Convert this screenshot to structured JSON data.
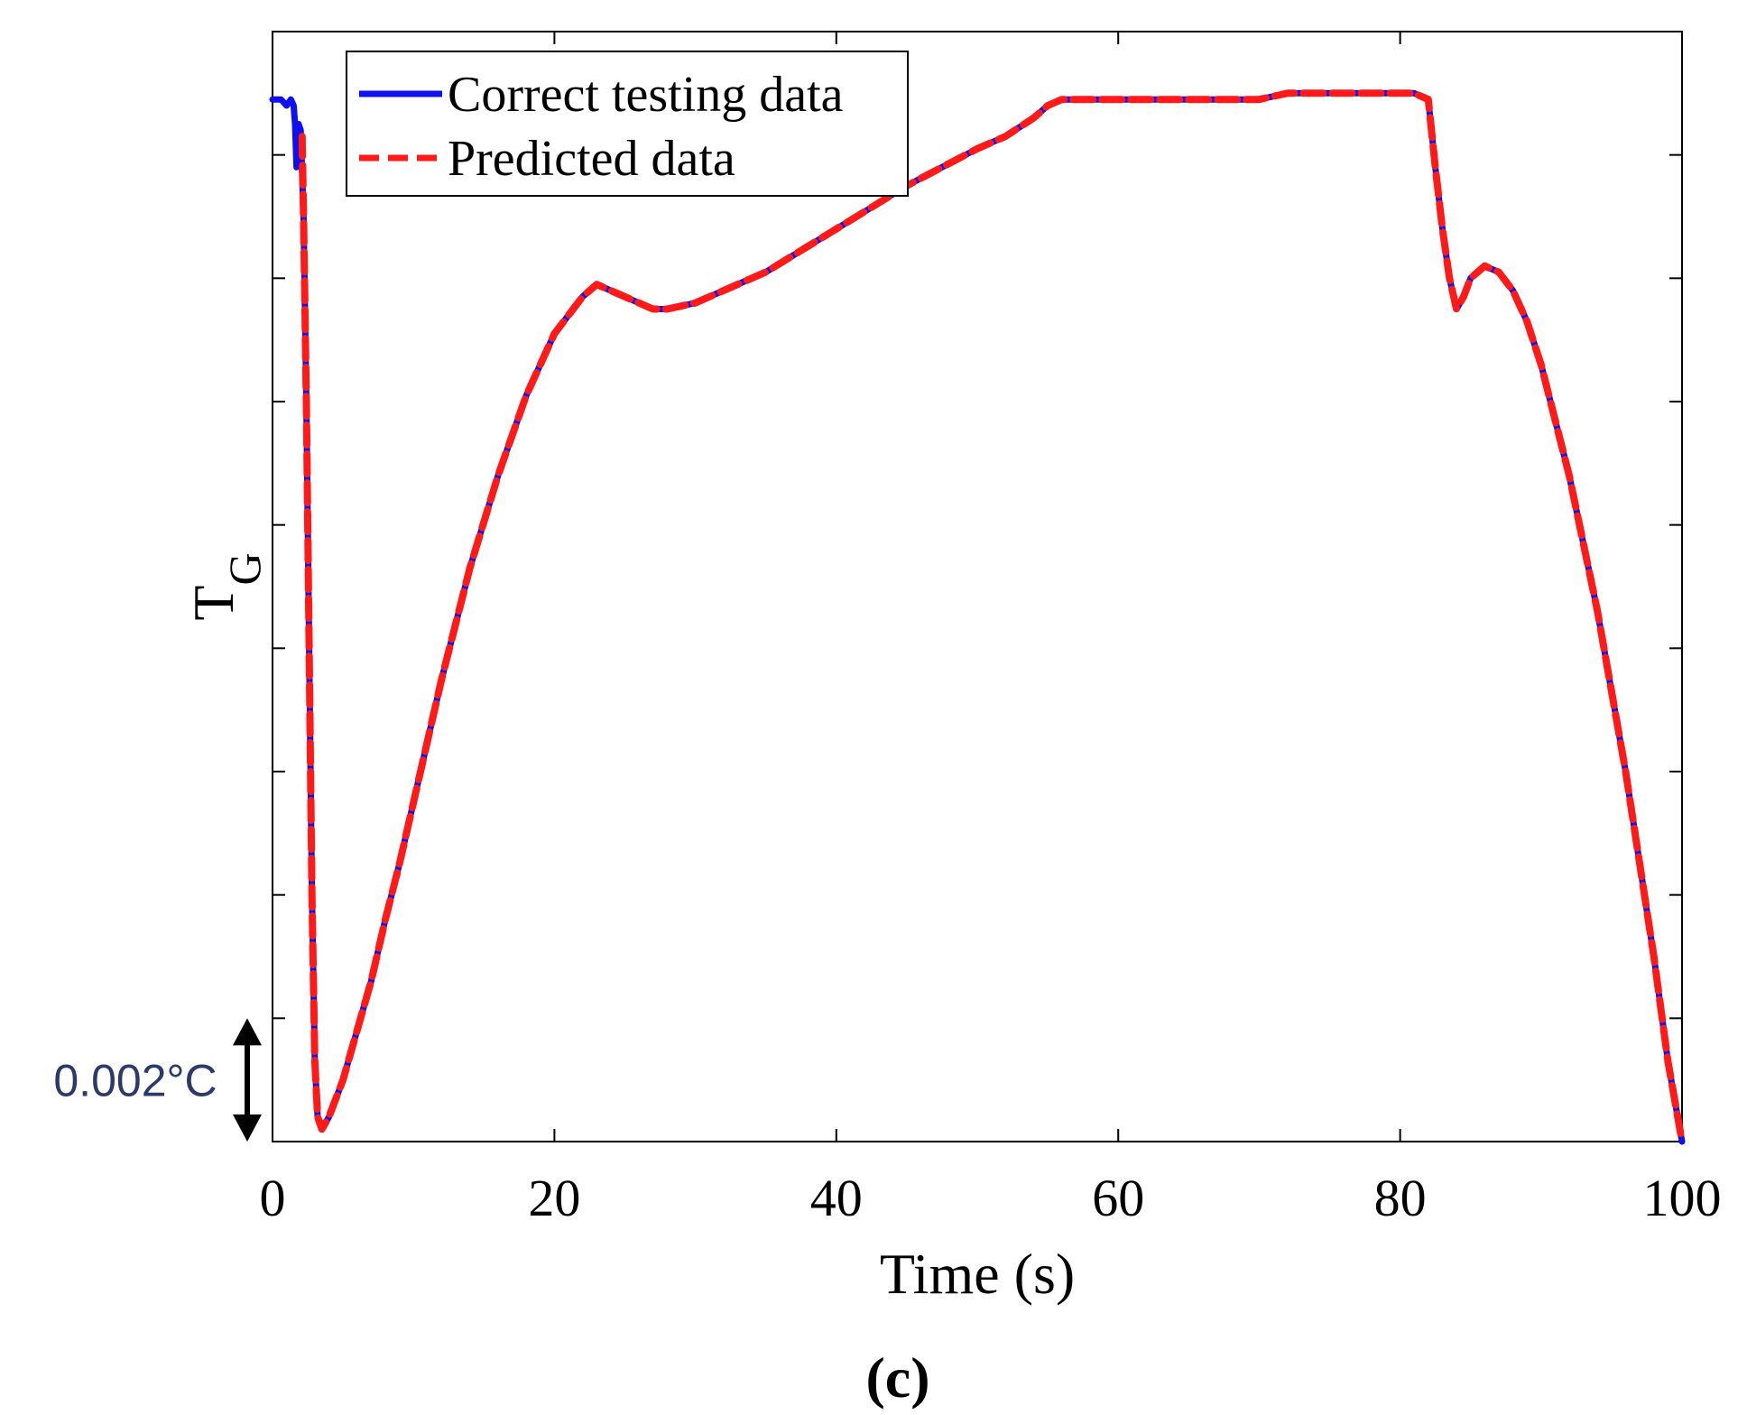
{
  "chart_data": {
    "type": "line",
    "xlabel": "Time (s)",
    "ylabel_main": "T",
    "ylabel_sub": "G",
    "caption": "(c)",
    "xlim": [
      0,
      100
    ],
    "xticks": [
      "0",
      "20",
      "40",
      "60",
      "80",
      "100"
    ],
    "ylim": [
      0,
      0.018
    ],
    "grid": false,
    "legend_position": "top-left",
    "scale_bar": {
      "label": "0.002°C",
      "magnitude": 0.002
    },
    "colors": {
      "actual": "#1010ee",
      "predicted": "#ff1a1a",
      "scale_label": "#2b3a6b"
    },
    "series": [
      {
        "name": "Correct testing data",
        "style": "solid",
        "x": [
          0,
          0.6,
          1.0,
          1.3,
          1.5,
          1.6,
          1.7,
          1.85,
          2.0,
          2.2,
          2.4,
          2.6,
          2.8,
          3.0,
          3.2,
          3.5,
          4.0,
          5.0,
          6.0,
          7.0,
          8.0,
          9.0,
          10,
          12,
          14,
          16,
          18,
          20,
          22,
          23,
          24,
          25,
          26,
          27,
          28,
          30,
          32,
          35,
          40,
          45,
          50,
          52,
          54,
          55,
          56,
          58,
          60,
          62,
          64,
          66,
          68,
          70,
          72,
          74,
          76,
          78,
          80,
          81,
          82,
          82.5,
          83,
          83.5,
          84,
          84.5,
          85,
          86,
          87,
          88,
          89,
          90,
          92,
          94,
          96,
          98,
          99,
          100
        ],
        "y": [
          0.0169,
          0.0169,
          0.0168,
          0.0169,
          0.0168,
          0.0165,
          0.0158,
          0.0165,
          0.0164,
          0.015,
          0.012,
          0.008,
          0.004,
          0.0013,
          0.0004,
          0.0002,
          0.0004,
          0.001,
          0.0018,
          0.0026,
          0.0036,
          0.0045,
          0.0055,
          0.0075,
          0.0093,
          0.0108,
          0.0121,
          0.0131,
          0.0137,
          0.0139,
          0.0138,
          0.0137,
          0.0136,
          0.0135,
          0.0135,
          0.0136,
          0.0138,
          0.0141,
          0.0148,
          0.0155,
          0.0161,
          0.0163,
          0.0166,
          0.0168,
          0.0169,
          0.0169,
          0.0169,
          0.0169,
          0.0169,
          0.0169,
          0.0169,
          0.0169,
          0.017,
          0.017,
          0.017,
          0.017,
          0.017,
          0.017,
          0.0169,
          0.0158,
          0.0148,
          0.014,
          0.0135,
          0.0137,
          0.014,
          0.0142,
          0.0141,
          0.0138,
          0.0133,
          0.0126,
          0.0108,
          0.0086,
          0.006,
          0.003,
          0.0013,
          0.0
        ]
      },
      {
        "name": "Predicted data",
        "style": "dashed",
        "x": [
          2.1,
          2.2,
          2.4,
          2.6,
          2.8,
          3.0,
          3.2,
          3.5,
          4.0,
          5.0,
          6.0,
          7.0,
          8.0,
          9.0,
          10,
          12,
          14,
          16,
          18,
          20,
          22,
          23,
          24,
          25,
          26,
          27,
          28,
          30,
          32,
          35,
          40,
          45,
          50,
          52,
          54,
          55,
          56,
          58,
          60,
          62,
          64,
          66,
          68,
          70,
          72,
          74,
          76,
          78,
          80,
          81,
          82,
          82.5,
          83,
          83.5,
          84,
          84.5,
          85,
          86,
          87,
          88,
          89,
          90,
          92,
          94,
          96,
          98,
          99,
          100
        ],
        "y": [
          0.0163,
          0.015,
          0.012,
          0.008,
          0.004,
          0.0013,
          0.0004,
          0.0002,
          0.0004,
          0.001,
          0.0018,
          0.0026,
          0.0036,
          0.0045,
          0.0055,
          0.0075,
          0.0093,
          0.0108,
          0.0121,
          0.0131,
          0.0137,
          0.0139,
          0.0138,
          0.0137,
          0.0136,
          0.0135,
          0.0135,
          0.0136,
          0.0138,
          0.0141,
          0.0148,
          0.0155,
          0.0161,
          0.0163,
          0.0166,
          0.0168,
          0.0169,
          0.0169,
          0.0169,
          0.0169,
          0.0169,
          0.0169,
          0.0169,
          0.0169,
          0.017,
          0.017,
          0.017,
          0.017,
          0.017,
          0.017,
          0.0169,
          0.0158,
          0.0148,
          0.014,
          0.0135,
          0.0137,
          0.014,
          0.0142,
          0.0141,
          0.0138,
          0.0133,
          0.0126,
          0.0108,
          0.0086,
          0.006,
          0.003,
          0.0013,
          0.0
        ]
      }
    ]
  }
}
